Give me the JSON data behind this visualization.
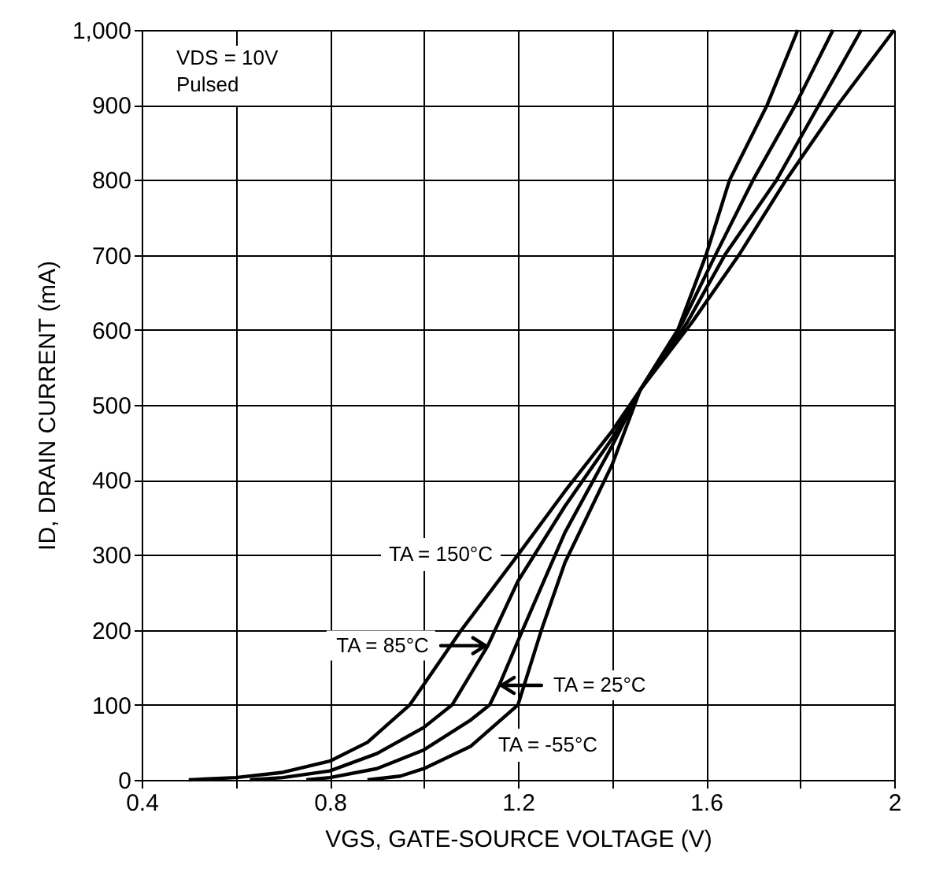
{
  "chart_data": {
    "type": "line",
    "xlabel": "VGS, GATE-SOURCE VOLTAGE (V)",
    "ylabel": "ID, DRAIN CURRENT (mA)",
    "xlim": [
      0.4,
      2
    ],
    "ylim": [
      0,
      1000
    ],
    "xticks": [
      0.4,
      {
        "value": 0.6,
        "label": null
      },
      0.8,
      {
        "value": 1.0,
        "label": null
      },
      1.2,
      {
        "value": 1.4,
        "label": null
      },
      1.6,
      {
        "value": 1.8,
        "label": null
      },
      {
        "value": 2,
        "label": "2"
      }
    ],
    "yticks": [
      0,
      100,
      200,
      300,
      400,
      500,
      600,
      700,
      800,
      900,
      {
        "value": 1000,
        "label": "1,000"
      }
    ],
    "grid": true,
    "marker": "none",
    "line_style": "solid",
    "series": [
      {
        "color": "#000000",
        "x": [
          0.5,
          0.6,
          0.7,
          0.8,
          0.88,
          0.97,
          1.08,
          1.2,
          1.3,
          1.4,
          1.46,
          1.54,
          1.6,
          1.65,
          1.73,
          1.795
        ],
        "values": [
          0,
          3,
          10,
          25,
          50,
          100,
          200,
          300,
          385,
          465,
          520,
          600,
          700,
          800,
          900,
          1000
        ]
      },
      {
        "color": "#000000",
        "x": [
          0.63,
          0.7,
          0.8,
          0.9,
          1.0,
          1.06,
          1.136,
          1.2,
          1.3,
          1.4,
          1.46,
          1.55,
          1.62,
          1.7,
          1.79,
          1.87
        ],
        "values": [
          0,
          3,
          12,
          35,
          70,
          100,
          179,
          265,
          365,
          455,
          520,
          610,
          700,
          800,
          900,
          1000
        ]
      },
      {
        "color": "#000000",
        "x": [
          0.75,
          0.8,
          0.9,
          1.0,
          1.1,
          1.14,
          1.16,
          1.21,
          1.3,
          1.4,
          1.46,
          1.56,
          1.64,
          1.75,
          1.84,
          1.93
        ],
        "values": [
          0,
          3,
          15,
          40,
          80,
          100,
          126,
          200,
          330,
          445,
          520,
          610,
          700,
          800,
          900,
          1000
        ]
      },
      {
        "color": "#000000",
        "x": [
          0.88,
          0.95,
          1.0,
          1.1,
          1.2,
          1.25,
          1.3,
          1.4,
          1.46,
          1.57,
          1.67,
          1.77,
          1.88,
          2.0
        ],
        "values": [
          0,
          5,
          15,
          45,
          100,
          200,
          290,
          420,
          520,
          610,
          700,
          800,
          900,
          1000
        ]
      }
    ],
    "annotations": [
      "VDS = 10V\nPulsed",
      "TA = 150°C",
      {
        "text": "TA = 85°C",
        "x": 1.136,
        "y": 179
      },
      {
        "text": "TA = 25°C",
        "x": 1.16,
        "y": 126
      },
      "TA = -55°C"
    ]
  }
}
